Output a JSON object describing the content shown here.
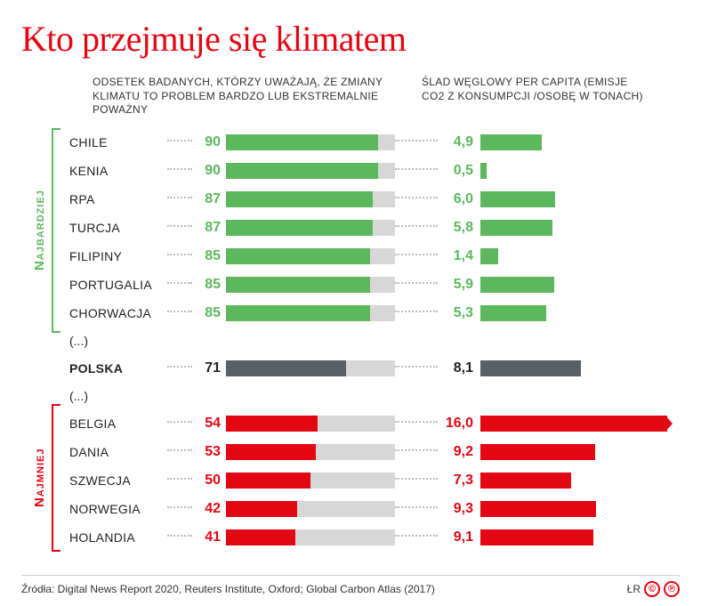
{
  "title": "Kto przejmuje się klimatem",
  "header_left": "ODSETEK BADANYCH, KTÓRZY UWAŻAJĄ, ŻE ZMIANY KLIMATU TO PROBLEM BARDZO LUB EKSTREMALNIE POWAŻNY",
  "header_right": "ŚLAD WĘGLOWY PER CAPITA (EMISJE CO2 Z KONSUMPCJI /OSOBĘ W TONACH)",
  "label_most": "Najbardziej",
  "label_least": "Najmniej",
  "ellipsis": "(...)",
  "colors": {
    "green": "#5cb85c",
    "red": "#e30613",
    "gray": "#5a5f66",
    "bar_bg": "#d7d7d7",
    "title": "#e30613"
  },
  "pct_max": 100,
  "carbon_max": 15,
  "rows_top": [
    {
      "country": "CHILE",
      "pct": "90",
      "pct_val": 90,
      "carbon": "4,9",
      "carbon_val": 4.9
    },
    {
      "country": "KENIA",
      "pct": "90",
      "pct_val": 90,
      "carbon": "0,5",
      "carbon_val": 0.5
    },
    {
      "country": "RPA",
      "pct": "87",
      "pct_val": 87,
      "carbon": "6,0",
      "carbon_val": 6.0
    },
    {
      "country": "TURCJA",
      "pct": "87",
      "pct_val": 87,
      "carbon": "5,8",
      "carbon_val": 5.8
    },
    {
      "country": "FILIPINY",
      "pct": "85",
      "pct_val": 85,
      "carbon": "1,4",
      "carbon_val": 1.4
    },
    {
      "country": "PORTUGALIA",
      "pct": "85",
      "pct_val": 85,
      "carbon": "5,9",
      "carbon_val": 5.9
    },
    {
      "country": "CHORWACJA",
      "pct": "85",
      "pct_val": 85,
      "carbon": "5,3",
      "carbon_val": 5.3
    }
  ],
  "row_mid": {
    "country": "POLSKA",
    "pct": "71",
    "pct_val": 71,
    "carbon": "8,1",
    "carbon_val": 8.1
  },
  "rows_bottom": [
    {
      "country": "BELGIA",
      "pct": "54",
      "pct_val": 54,
      "carbon": "16,0",
      "carbon_val": 16.0
    },
    {
      "country": "DANIA",
      "pct": "53",
      "pct_val": 53,
      "carbon": "9,2",
      "carbon_val": 9.2
    },
    {
      "country": "SZWECJA",
      "pct": "50",
      "pct_val": 50,
      "carbon": "7,3",
      "carbon_val": 7.3
    },
    {
      "country": "NORWEGIA",
      "pct": "42",
      "pct_val": 42,
      "carbon": "9,3",
      "carbon_val": 9.3
    },
    {
      "country": "HOLANDIA",
      "pct": "41",
      "pct_val": 41,
      "carbon": "9,1",
      "carbon_val": 9.1
    }
  ],
  "source": "Źródła: Digital News Report 2020, Reuters Institute, Oxford; Global Carbon Atlas (2017)",
  "credit": "ŁR",
  "badge1": "©",
  "badge2": "℗"
}
